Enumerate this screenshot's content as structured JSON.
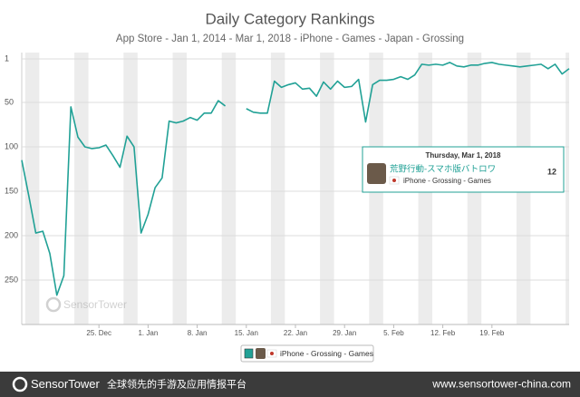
{
  "chart_data": {
    "type": "line",
    "title": "Daily Category Rankings",
    "subtitle": "App Store - Jan 1, 2014 - Mar 1, 2018 - iPhone - Games - Japan - Grossing",
    "inverted": true,
    "grid": true,
    "ylim": [
      1,
      300
    ],
    "yticks": [
      1,
      50,
      100,
      150,
      200,
      250
    ],
    "xlim": [
      0,
      78
    ],
    "xticks": [
      {
        "value": 11,
        "label": "25. Dec"
      },
      {
        "value": 18,
        "label": "1. Jan"
      },
      {
        "value": 25,
        "label": "8. Jan"
      },
      {
        "value": 32,
        "label": "15. Jan"
      },
      {
        "value": 39,
        "label": "22. Jan"
      },
      {
        "value": 46,
        "label": "29. Jan"
      },
      {
        "value": 53,
        "label": "5. Feb"
      },
      {
        "value": 60,
        "label": "12. Feb"
      },
      {
        "value": 67,
        "label": "19. Feb"
      }
    ],
    "series": [
      {
        "name": "iPhone - Grossing - Games",
        "color": "#21a196",
        "x": [
          0,
          1,
          2,
          3,
          4,
          5,
          6,
          7,
          8,
          9,
          10,
          11,
          12,
          13,
          14,
          15,
          16,
          17,
          18,
          19,
          20,
          21,
          22,
          23,
          24,
          25,
          26,
          27,
          28,
          29,
          30,
          31,
          32,
          33,
          34,
          35,
          36,
          37,
          38,
          39,
          40,
          41,
          42,
          43,
          44,
          45,
          46,
          47,
          48,
          49,
          50,
          51,
          52,
          53,
          54,
          55,
          56,
          57,
          58,
          59,
          60,
          61,
          62,
          63,
          64,
          65,
          66,
          67,
          68,
          69,
          70,
          71,
          72,
          73,
          74,
          75,
          76,
          77,
          78
        ],
        "values": [
          115,
          155,
          197,
          195,
          220,
          267,
          245,
          55,
          89,
          100,
          102,
          101,
          98,
          110,
          123,
          88,
          100,
          197,
          176,
          146,
          135,
          71,
          73,
          71,
          67,
          70,
          62,
          62,
          48,
          54,
          null,
          null,
          57,
          61,
          62,
          62,
          26,
          33,
          30,
          28,
          35,
          34,
          43,
          27,
          35,
          26,
          33,
          32,
          24,
          72,
          30,
          25,
          25,
          24,
          21,
          24,
          19,
          7,
          8,
          7,
          8,
          5,
          9,
          10,
          8,
          8,
          6,
          5,
          7,
          8,
          9,
          10,
          9,
          8,
          7,
          12,
          7,
          18,
          12
        ]
      }
    ],
    "tooltip": {
      "date": "Thursday, Mar 1, 2018",
      "app": "荒野行動-スマホ版バトロワ"
    }
  },
  "footer": {
    "brand": "SensorTower",
    "tagline": "全球领先的手游及应用情报平台",
    "url": "www.sensortower-china.com"
  }
}
